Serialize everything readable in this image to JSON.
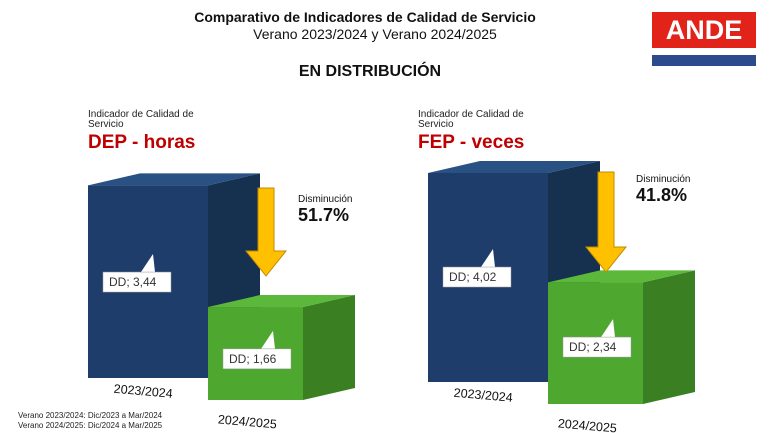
{
  "header": {
    "title": "Comparativo de Indicadores de Calidad de Servicio",
    "subtitle": "Verano 2023/2024 y Verano 2024/2025",
    "section": "EN DISTRIBUCIÓN"
  },
  "logo": {
    "text": "ANDE"
  },
  "colors": {
    "blue": "#1f3d6b",
    "green": "#4ea72e",
    "arrow": "#ffc000",
    "red": "#c00000"
  },
  "chart_data": [
    {
      "type": "bar",
      "label": "Indicador de Calidad de Servicio",
      "title": "DEP - horas",
      "categories": [
        "2023/2024",
        "2024/2025"
      ],
      "values": [
        3.44,
        1.66
      ],
      "data_labels": [
        "DD; 3,44",
        "DD; 1,66"
      ],
      "change_label": "Disminución",
      "change": "51.7%"
    },
    {
      "type": "bar",
      "label": "Indicador de Calidad de Servicio",
      "title": "FEP - veces",
      "categories": [
        "2023/2024",
        "2024/2025"
      ],
      "values": [
        4.02,
        2.34
      ],
      "data_labels": [
        "DD; 4,02",
        "DD; 2,34"
      ],
      "change_label": "Disminución",
      "change": "41.8%"
    }
  ],
  "footnotes": [
    "Verano 2023/2024: Dic/2023 a Mar/2024",
    "Verano 2024/2025: Dic/2024 a Mar/2025"
  ]
}
